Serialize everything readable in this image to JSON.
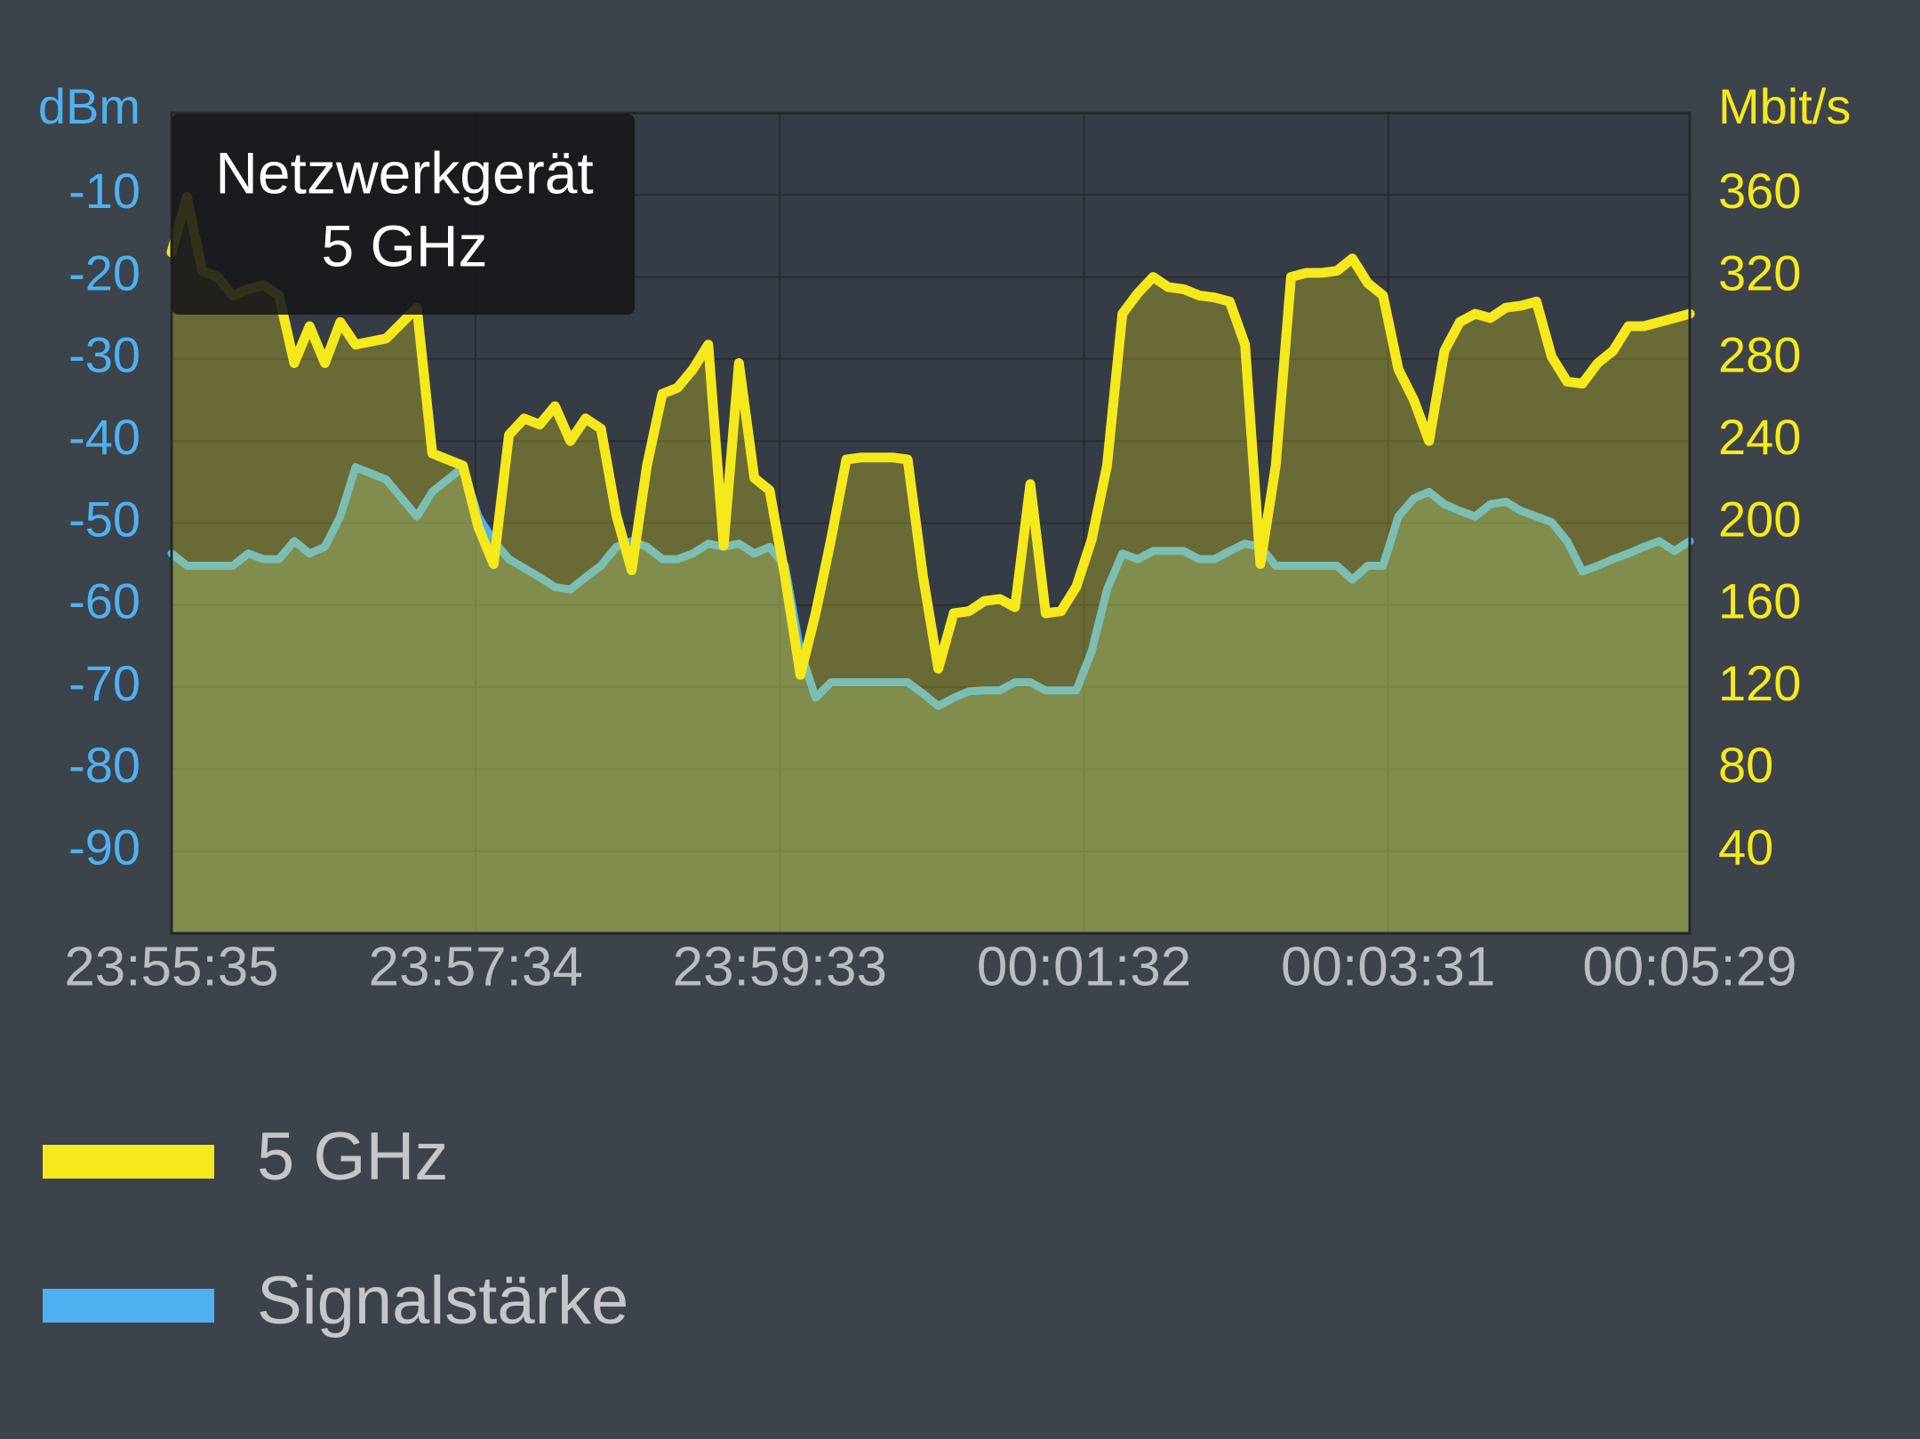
{
  "chart_data": {
    "type": "line",
    "tooltip": [
      "Netzwerkgerät",
      "5 GHz"
    ],
    "ylabel": "dBm",
    "y2label": "Mbit/s",
    "xlim": [
      0,
      594
    ],
    "xticks": [
      {
        "value": 0,
        "label": "23:55:35"
      },
      {
        "value": 119,
        "label": "23:57:34"
      },
      {
        "value": 238,
        "label": "23:59:33"
      },
      {
        "value": 357,
        "label": "00:01:32"
      },
      {
        "value": 476,
        "label": "00:03:31"
      },
      {
        "value": 594,
        "label": "00:05:29"
      }
    ],
    "ylim": [
      -100,
      0
    ],
    "yticks": [
      -10,
      -20,
      -30,
      -40,
      -50,
      -60,
      -70,
      -80,
      -90
    ],
    "y2lim": [
      0,
      400
    ],
    "y2ticks": [
      360,
      320,
      280,
      240,
      200,
      160,
      120,
      80,
      40
    ],
    "grid": true,
    "x": [
      0,
      6,
      12,
      18,
      24,
      30,
      36,
      42,
      48,
      54,
      60,
      66,
      72,
      84,
      96,
      102,
      108,
      114,
      120,
      126,
      132,
      138,
      144,
      150,
      156,
      162,
      168,
      174,
      180,
      186,
      192,
      198,
      204,
      210,
      216,
      222,
      228,
      234,
      240,
      246,
      252,
      258,
      264,
      270,
      282,
      288,
      294,
      300,
      306,
      312,
      318,
      324,
      330,
      336,
      342,
      348,
      354,
      360,
      366,
      372,
      378,
      384,
      390,
      396,
      402,
      408,
      414,
      420,
      426,
      432,
      438,
      444,
      450,
      456,
      462,
      468,
      474,
      480,
      486,
      492,
      498,
      504,
      510,
      516,
      522,
      528,
      534,
      540,
      546,
      552,
      558,
      564,
      570,
      576,
      582,
      588,
      594
    ],
    "series": [
      {
        "name": "Signalstärke",
        "color": "#4fb0f0",
        "axis": "y",
        "values": [
          -53.7,
          -55.2,
          -55.2,
          -55.2,
          -55.2,
          -53.7,
          -54.4,
          -54.4,
          -52.2,
          -53.7,
          -52.9,
          -49.2,
          -43.2,
          -44.7,
          -49.2,
          -46.2,
          -44.7,
          -43.2,
          -49.2,
          -52.2,
          -54.4,
          -55.5,
          -56.6,
          -57.8,
          -58.1,
          -56.6,
          -55.2,
          -52.9,
          -52.2,
          -52.9,
          -54.4,
          -54.4,
          -53.7,
          -52.5,
          -52.9,
          -52.5,
          -53.7,
          -52.9,
          -55.2,
          -65.6,
          -71.3,
          -69.4,
          -69.4,
          -69.4,
          -69.4,
          -69.4,
          -70.8,
          -72.3,
          -71.3,
          -70.5,
          -70.4,
          -70.4,
          -69.4,
          -69.4,
          -70.4,
          -70.4,
          -70.4,
          -65.6,
          -58.1,
          -53.7,
          -54.4,
          -53.4,
          -53.4,
          -53.4,
          -54.4,
          -54.4,
          -53.4,
          -52.5,
          -52.9,
          -55.2,
          -55.2,
          -55.2,
          -55.2,
          -55.2,
          -56.9,
          -55.2,
          -55.2,
          -49.2,
          -47.0,
          -46.2,
          -47.7,
          -48.5,
          -49.2,
          -47.7,
          -47.4,
          -48.5,
          -49.2,
          -49.9,
          -52.2,
          -55.9,
          -55.2,
          -54.4,
          -53.7,
          -52.9,
          -52.2,
          -53.4,
          -52.2
        ]
      },
      {
        "name": "5 GHz",
        "color": "#f5e91c",
        "axis": "y2",
        "values": [
          332,
          359,
          323,
          320,
          311,
          314,
          316,
          311,
          278,
          296,
          278,
          298,
          287,
          290,
          305,
          234,
          231,
          228,
          198,
          180,
          243,
          251,
          248,
          257,
          240,
          251,
          246,
          204,
          177,
          228,
          263,
          266,
          275,
          287,
          189,
          278,
          222,
          216,
          174,
          126,
          156,
          192,
          231,
          232,
          232,
          231,
          174,
          129,
          156,
          157,
          162,
          163,
          159,
          219,
          156,
          157,
          169,
          192,
          228,
          302,
          312,
          320,
          315,
          314,
          311,
          310,
          308,
          287,
          180,
          228,
          320,
          322,
          322,
          323,
          329,
          317,
          311,
          275,
          260,
          240,
          284,
          298,
          302,
          300,
          305,
          306,
          308,
          281,
          269,
          268,
          278,
          284,
          296,
          296,
          298,
          300,
          302
        ]
      }
    ]
  }
}
